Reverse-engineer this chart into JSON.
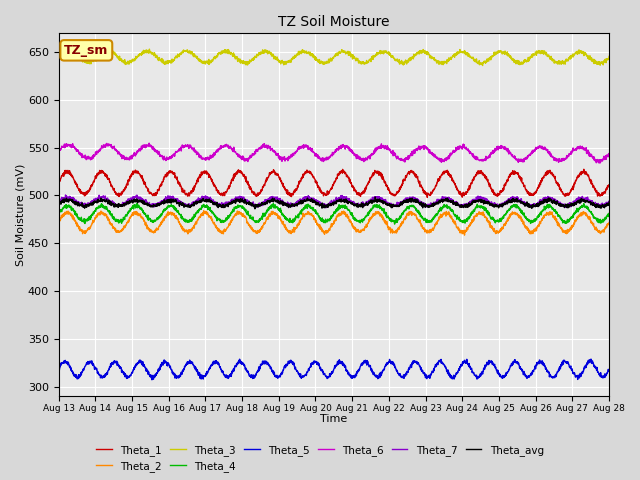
{
  "title": "TZ Soil Moisture",
  "xlabel": "Time",
  "ylabel": "Soil Moisture (mV)",
  "ylim": [
    290,
    670
  ],
  "yticks": [
    300,
    350,
    400,
    450,
    500,
    550,
    600,
    650
  ],
  "date_start": 13,
  "date_end": 28,
  "n_points": 2160,
  "background_color": "#d8d8d8",
  "plot_bg_color": "#e8e8e8",
  "series": {
    "Theta_1": {
      "color": "#cc0000",
      "base": 513,
      "amp": 12,
      "trend": -0.5,
      "freq": 16
    },
    "Theta_2": {
      "color": "#ff8800",
      "base": 472,
      "amp": 10,
      "trend": -0.3,
      "freq": 16
    },
    "Theta_3": {
      "color": "#cccc00",
      "base": 645,
      "amp": 6,
      "trend": -0.8,
      "freq": 14
    },
    "Theta_4": {
      "color": "#00bb00",
      "base": 481,
      "amp": 8,
      "trend": -0.2,
      "freq": 16
    },
    "Theta_5": {
      "color": "#0000dd",
      "base": 318,
      "amp": 8,
      "trend": 0.0,
      "freq": 22
    },
    "Theta_6": {
      "color": "#cc00cc",
      "base": 546,
      "amp": 7,
      "trend": -3.0,
      "freq": 14
    },
    "Theta_7": {
      "color": "#8800cc",
      "base": 494,
      "amp": 4,
      "trend": -0.8,
      "freq": 16
    },
    "Theta_avg": {
      "color": "#000000",
      "base": 492,
      "amp": 3,
      "trend": -0.3,
      "freq": 16
    }
  },
  "legend_label": "TZ_sm",
  "legend_bg": "#ffffaa",
  "legend_border": "#cc8800",
  "legend_text_color": "#880000"
}
